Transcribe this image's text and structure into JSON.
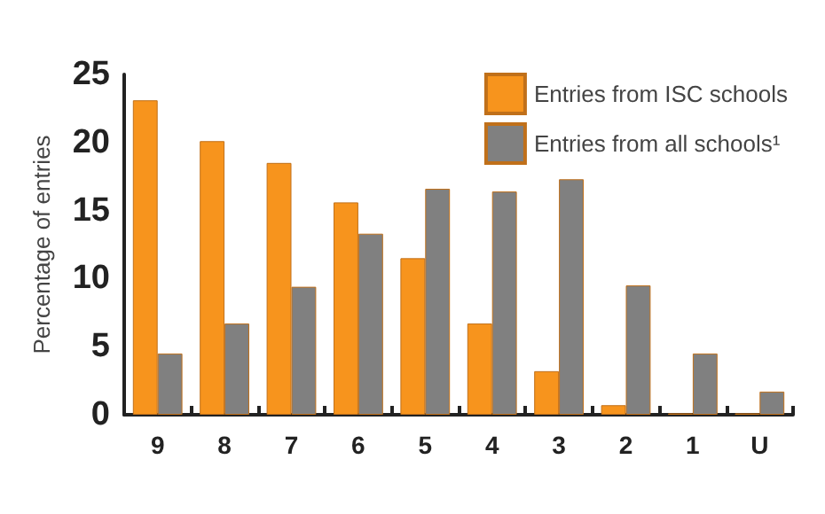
{
  "chart_data": {
    "type": "bar",
    "ylabel": "Percentage of entries",
    "categories": [
      "9",
      "8",
      "7",
      "6",
      "5",
      "4",
      "3",
      "2",
      "1",
      "U"
    ],
    "series": [
      {
        "name": "Entries from ISC schools",
        "color": "#f7941d",
        "values": [
          23.1,
          20.1,
          18.5,
          15.6,
          11.5,
          6.7,
          3.2,
          0.7,
          0.1,
          0.1
        ]
      },
      {
        "name": "Entries from all schools¹",
        "color": "#808080",
        "values": [
          4.5,
          6.7,
          9.4,
          13.3,
          16.6,
          16.4,
          17.3,
          9.5,
          4.5,
          1.7
        ]
      }
    ],
    "ylim": [
      0,
      25
    ],
    "yticks": [
      0,
      5,
      10,
      15,
      20,
      25
    ],
    "grid": false,
    "legend": "top right"
  }
}
